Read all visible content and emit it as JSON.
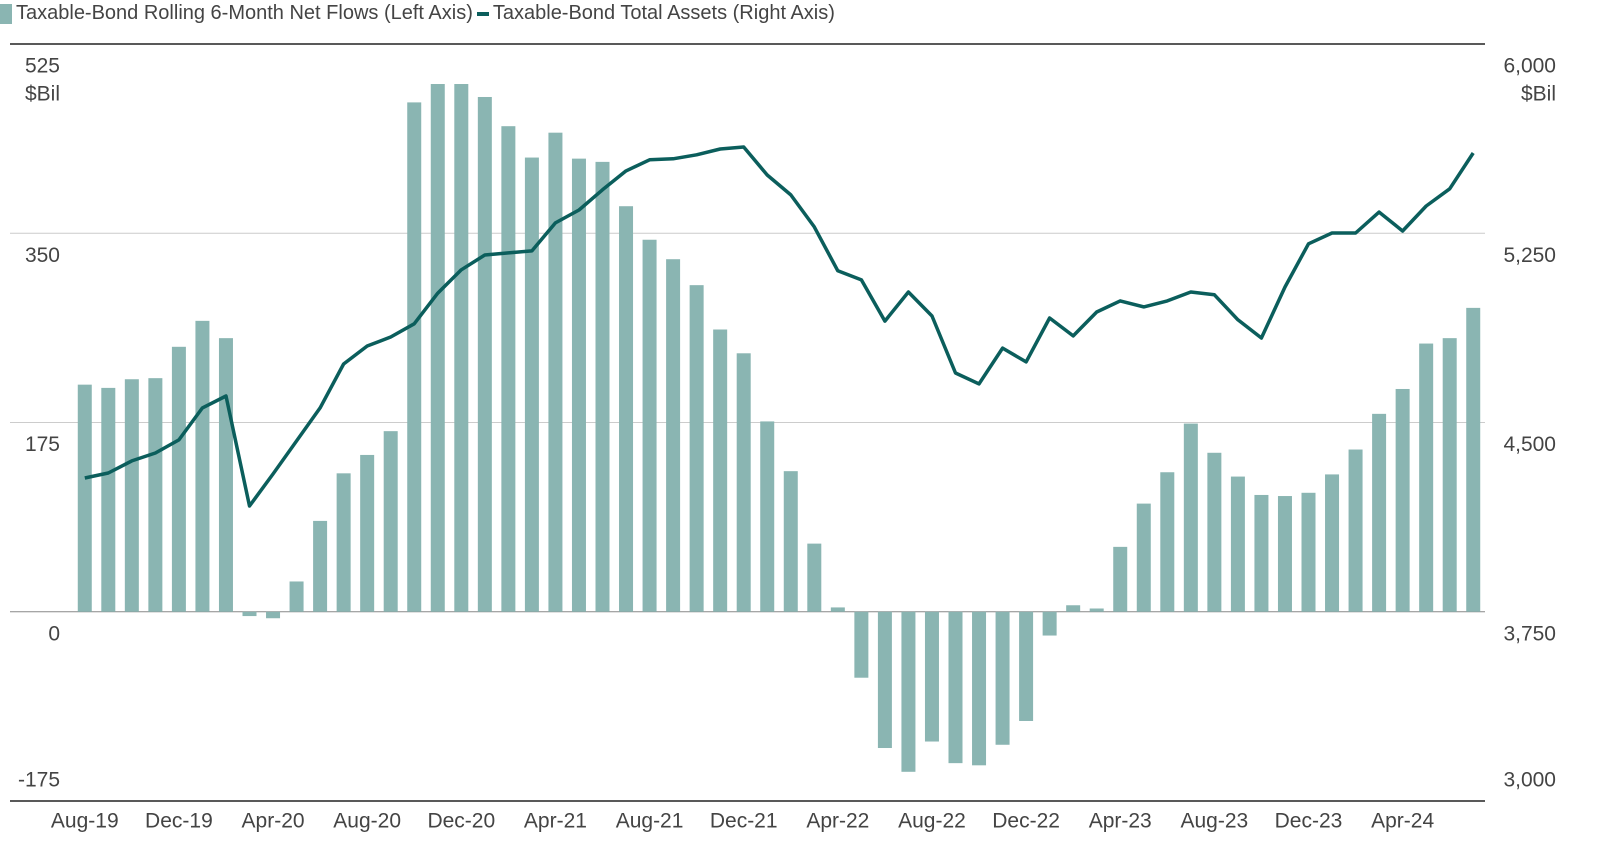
{
  "chart_data": {
    "type": "bar",
    "categories": [
      "Aug-19",
      null,
      null,
      null,
      "Dec-19",
      null,
      null,
      null,
      "Apr-20",
      null,
      null,
      null,
      "Aug-20",
      null,
      null,
      null,
      "Dec-20",
      null,
      null,
      null,
      "Apr-21",
      null,
      null,
      null,
      "Aug-21",
      null,
      null,
      null,
      "Dec-21",
      null,
      null,
      null,
      "Apr-22",
      null,
      null,
      null,
      "Aug-22",
      null,
      null,
      null,
      "Dec-22",
      null,
      null,
      null,
      "Apr-23",
      null,
      null,
      null,
      "Aug-23",
      null,
      null,
      null,
      "Dec-23",
      null,
      null,
      null,
      "Apr-24",
      null,
      null,
      null
    ],
    "series": [
      {
        "name": "Taxable-Bond Rolling 6-Month Net Flows (Left Axis)",
        "type": "bar",
        "color": "#8ab5b2",
        "values": [
          210,
          207,
          215,
          216,
          245,
          269,
          253,
          -4,
          -6,
          28,
          84,
          128,
          145,
          167,
          471,
          488,
          488,
          476,
          449,
          420,
          443,
          419,
          416,
          375,
          344,
          326,
          302,
          261,
          239,
          176,
          130,
          63,
          4,
          -61,
          -126,
          -148,
          -120,
          -140,
          -142,
          -123,
          -101,
          -22,
          6,
          3,
          60,
          100,
          129,
          174,
          147,
          125,
          108,
          107,
          110,
          127,
          150,
          183,
          206,
          248,
          253,
          281
        ]
      },
      {
        "name": "Taxable-Bond Total Assets (Right Axis)",
        "type": "line",
        "axis": "y2",
        "color": "#0b5e5c",
        "values": [
          4280,
          4300,
          4348,
          4379,
          4431,
          4558,
          4605,
          4169,
          4296,
          4427,
          4558,
          4732,
          4803,
          4839,
          4891,
          5013,
          5105,
          5164,
          5172,
          5180,
          5291,
          5342,
          5422,
          5497,
          5541,
          5545,
          5561,
          5584,
          5592,
          5481,
          5402,
          5275,
          5101,
          5065,
          4902,
          5017,
          4922,
          4696,
          4653,
          4795,
          4740,
          4914,
          4843,
          4938,
          4982,
          4958,
          4982,
          5017,
          5006,
          4907,
          4835,
          5037,
          5208,
          5251,
          5251,
          5334,
          5259,
          5358,
          5426,
          5568
        ]
      }
    ],
    "ylim": [
      -175,
      525
    ],
    "yticks": [
      -175,
      0,
      175,
      350,
      525
    ],
    "y_unit": "$Bil",
    "y2lim": [
      3000,
      6000
    ],
    "y2ticks": [
      {
        "value": 3000,
        "label": "3,000"
      },
      {
        "value": 3750,
        "label": "3,750"
      },
      {
        "value": 4500,
        "label": "4,500"
      },
      {
        "value": 5250,
        "label": "5,250"
      },
      {
        "value": 6000,
        "label": "6,000"
      }
    ],
    "y2_unit": "$Bil",
    "grid": true
  }
}
